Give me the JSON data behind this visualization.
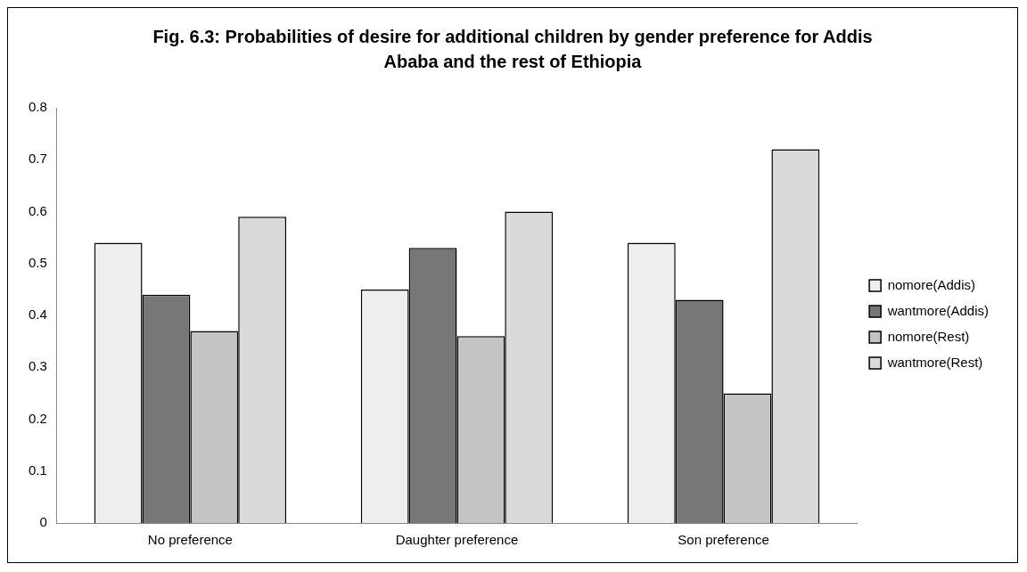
{
  "chart_data": {
    "type": "bar",
    "title": "Fig. 6.3:  Probabilities of desire for additional children by gender preference for Addis Ababa and the rest of Ethiopia",
    "categories": [
      "No preference",
      "Daughter preference",
      "Son preference"
    ],
    "series": [
      {
        "name": "nomore(Addis)",
        "color": "#eeeeee",
        "values": [
          0.54,
          0.45,
          0.54
        ]
      },
      {
        "name": "wantmore(Addis)",
        "color": "#777777",
        "values": [
          0.44,
          0.53,
          0.43
        ]
      },
      {
        "name": "nomore(Rest)",
        "color": "#c4c4c4",
        "values": [
          0.37,
          0.36,
          0.25
        ]
      },
      {
        "name": "wantmore(Rest)",
        "color": "#dadada",
        "values": [
          0.59,
          0.6,
          0.72
        ]
      }
    ],
    "ylim": [
      0,
      0.8
    ],
    "yticks": [
      0,
      0.1,
      0.2,
      0.3,
      0.4,
      0.5,
      0.6,
      0.7,
      0.8
    ],
    "grid": false,
    "legend": "right"
  }
}
